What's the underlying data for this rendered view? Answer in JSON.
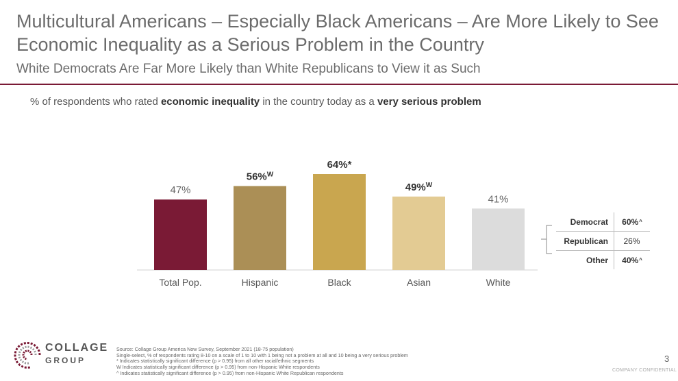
{
  "header": {
    "title": "Multicultural Americans – Especially Black Americans – Are More Likely to See Economic Inequality as a Serious Problem in the Country",
    "subtitle": "White Democrats Are Far More Likely than White Republicans to View it as Such",
    "question_pre": "% of respondents who rated ",
    "question_b1": "economic inequality",
    "question_mid": " in the country today as a ",
    "question_b2": "very serious problem"
  },
  "chart_data": {
    "type": "bar",
    "categories": [
      "Total Pop.",
      "Hispanic",
      "Black",
      "Asian",
      "White"
    ],
    "values": [
      47,
      56,
      64,
      49,
      41
    ],
    "labels": [
      "47%",
      "56%",
      "64%*",
      "49%",
      "41%"
    ],
    "label_suffix": [
      "",
      "W",
      "",
      "W",
      ""
    ],
    "label_bold": [
      false,
      true,
      true,
      true,
      false
    ],
    "colors": [
      "#7a1a35",
      "#ab8f56",
      "#c9a64f",
      "#e3cb93",
      "#dcdcdc"
    ],
    "ylim": [
      0,
      100
    ],
    "breakdown": {
      "rows": [
        {
          "name": "Democrat",
          "value": "60%",
          "mark": "^",
          "bold": true
        },
        {
          "name": "Republican",
          "value": "26%",
          "mark": "",
          "bold": false
        },
        {
          "name": "Other",
          "value": "40%",
          "mark": "^",
          "bold": true
        }
      ]
    }
  },
  "footer": {
    "logo_line1": "COLLAGE",
    "logo_line2": "GROUP",
    "notes": [
      "Source: Collage Group America Now Survey, September 2021 (18-75 population)",
      "Single-select, % of respondents rating 8-10 on a scale of 1 to 10 with 1 being not a problem at all and 10 being a very serious problem",
      "* Indicates statistically significant difference (p > 0.95) from all other racial/ethnic segments",
      "W Indicates statistically significant difference (p > 0.95) from non-Hispanic White respondents",
      "^ Indicates statistically significant difference (p > 0.95) from non-Hispanic White Republican respondents"
    ],
    "page_number": "3",
    "confidential": "COMPANY CONFIDENTIAL"
  }
}
